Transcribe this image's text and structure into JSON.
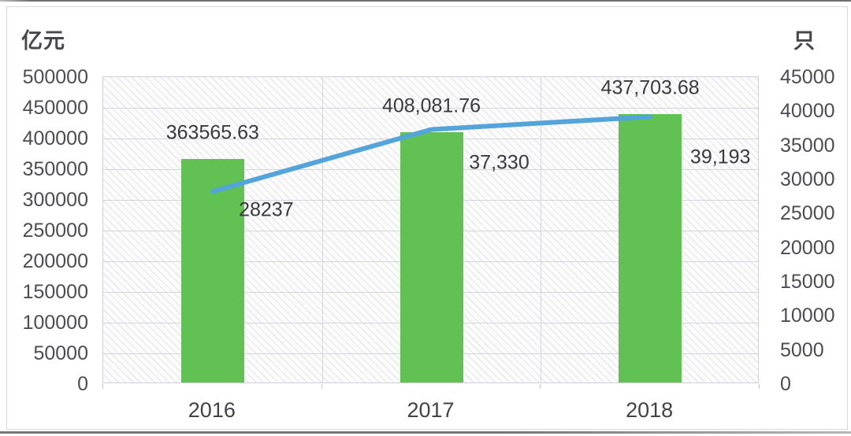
{
  "chart_data": {
    "type": "bar+line combo",
    "title": "",
    "categories": [
      "2016",
      "2017",
      "2018"
    ],
    "series": [
      {
        "name": "bar-series",
        "type": "bar",
        "axis": "left",
        "values": [
          363565.63,
          408081.76,
          437703.68
        ],
        "labels": [
          "363565.63",
          "408,081.76",
          "437,703.68"
        ],
        "color": "#62c153"
      },
      {
        "name": "line-series",
        "type": "line",
        "axis": "right",
        "values": [
          28237,
          37330,
          39193
        ],
        "labels": [
          "28237",
          "37,330",
          "39,193"
        ],
        "color": "#54a4dc"
      }
    ],
    "left_axis": {
      "unit": "亿元",
      "min": 0,
      "max": 500000,
      "tick_step": 50000,
      "ticks": [
        "500000",
        "450000",
        "400000",
        "350000",
        "300000",
        "250000",
        "200000",
        "150000",
        "100000",
        "50000",
        "0"
      ]
    },
    "right_axis": {
      "unit": "只",
      "min": 0,
      "max": 45000,
      "tick_step": 5000,
      "ticks": [
        "45000",
        "40000",
        "35000",
        "30000",
        "25000",
        "20000",
        "15000",
        "10000",
        "5000",
        "0"
      ]
    },
    "legend": "none",
    "grid": "horizontal lines every 50000 (left scale) + vertical lines at category boundaries",
    "plot_background": "light diagonal hatch on white"
  },
  "colors": {
    "bar_green": "#62c153",
    "line_blue": "#54a4dc",
    "gridline": "#d6d6da",
    "tick_text": "#4d4d51",
    "label_text": "#3a3a3e",
    "card_border": "#d9d9dd"
  }
}
